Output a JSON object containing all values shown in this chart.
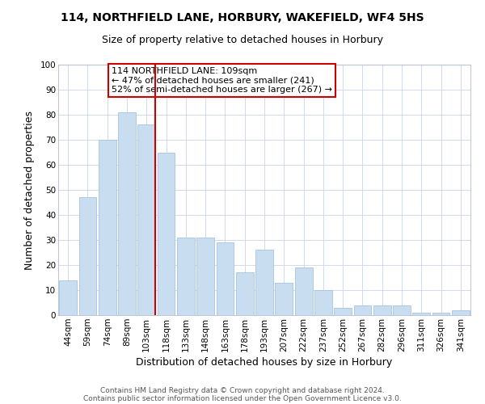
{
  "title": "114, NORTHFIELD LANE, HORBURY, WAKEFIELD, WF4 5HS",
  "subtitle": "Size of property relative to detached houses in Horbury",
  "xlabel": "Distribution of detached houses by size in Horbury",
  "ylabel": "Number of detached properties",
  "bar_labels": [
    "44sqm",
    "59sqm",
    "74sqm",
    "89sqm",
    "103sqm",
    "118sqm",
    "133sqm",
    "148sqm",
    "163sqm",
    "178sqm",
    "193sqm",
    "207sqm",
    "222sqm",
    "237sqm",
    "252sqm",
    "267sqm",
    "282sqm",
    "296sqm",
    "311sqm",
    "326sqm",
    "341sqm"
  ],
  "bar_values": [
    14,
    47,
    70,
    81,
    76,
    65,
    31,
    31,
    29,
    17,
    26,
    13,
    19,
    10,
    3,
    4,
    4,
    4,
    1,
    1,
    2
  ],
  "bar_color": "#c9ddf0",
  "bar_edge_color": "#a8c4e0",
  "vline_color": "#cc0000",
  "vline_x_index": 4,
  "ylim": [
    0,
    100
  ],
  "yticks": [
    0,
    10,
    20,
    30,
    40,
    50,
    60,
    70,
    80,
    90,
    100
  ],
  "annotation_title": "114 NORTHFIELD LANE: 109sqm",
  "annotation_line1": "← 47% of detached houses are smaller (241)",
  "annotation_line2": "52% of semi-detached houses are larger (267) →",
  "annotation_box_color": "#ffffff",
  "annotation_box_edge_color": "#cc0000",
  "footer_line1": "Contains HM Land Registry data © Crown copyright and database right 2024.",
  "footer_line2": "Contains public sector information licensed under the Open Government Licence v3.0.",
  "background_color": "#ffffff",
  "grid_color": "#c8d4e8",
  "title_fontsize": 10,
  "subtitle_fontsize": 9,
  "axis_label_fontsize": 9,
  "tick_fontsize": 7.5,
  "annotation_fontsize": 8,
  "footer_fontsize": 6.5
}
